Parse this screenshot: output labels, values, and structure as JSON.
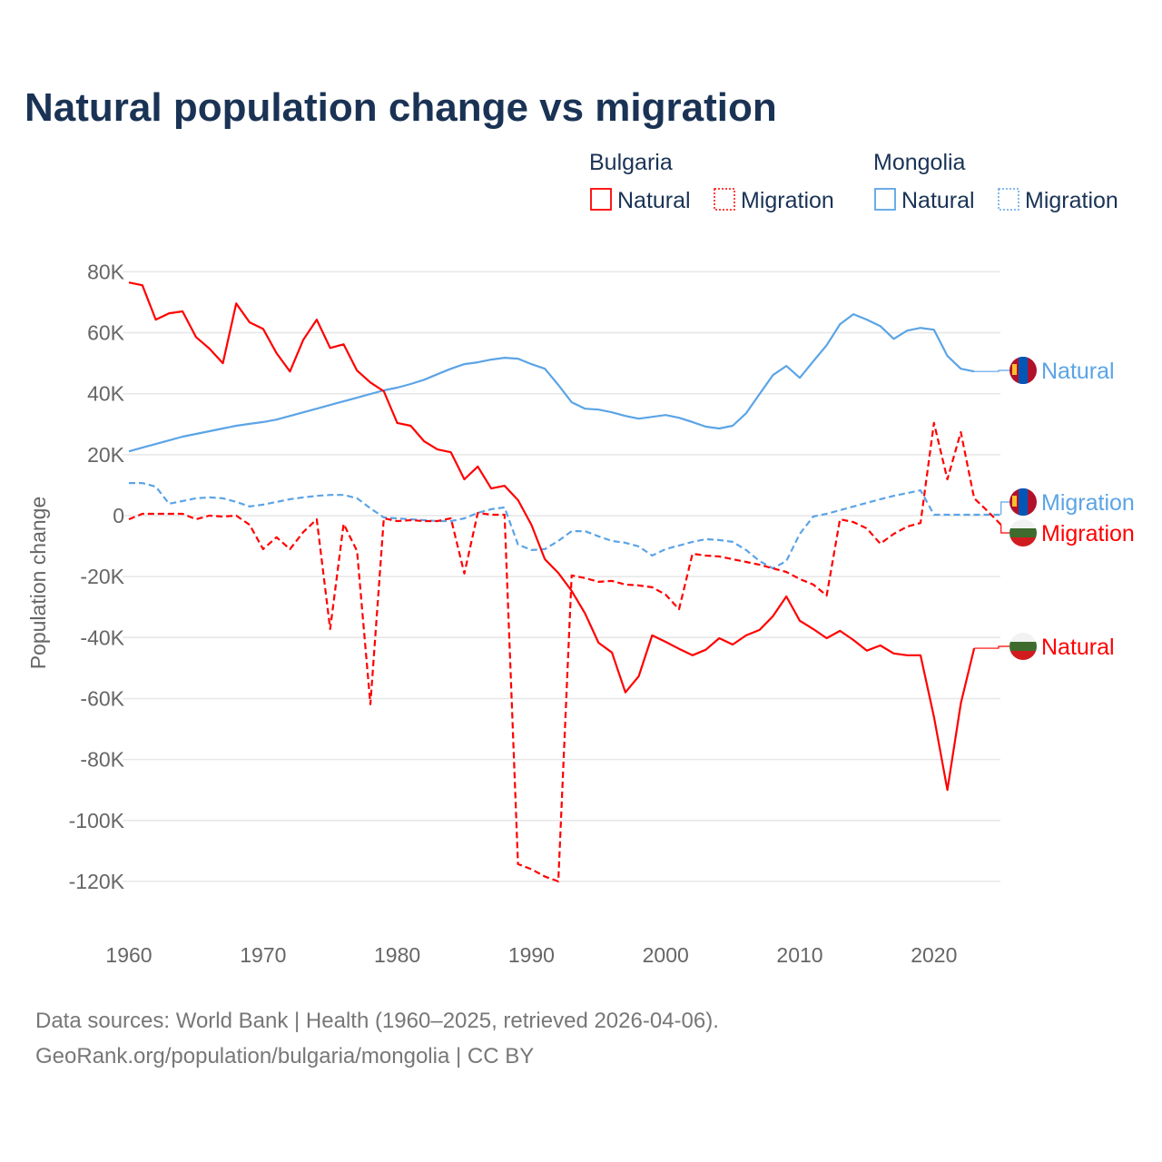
{
  "chart_data": {
    "type": "line",
    "title": "Natural population change vs migration",
    "xlabel": "",
    "ylabel": "Population change",
    "xlim": [
      1960,
      2025
    ],
    "ylim": [
      -130000,
      80000
    ],
    "y_ticks": [
      80000,
      60000,
      40000,
      20000,
      0,
      -20000,
      -40000,
      -60000,
      -80000,
      -100000,
      -120000
    ],
    "y_tick_labels": [
      "80K",
      "60K",
      "40K",
      "20K",
      "0",
      "-20K",
      "-40K",
      "-60K",
      "-80K",
      "-100K",
      "-120K"
    ],
    "x_ticks": [
      1960,
      1970,
      1980,
      1990,
      2000,
      2010,
      2020
    ],
    "x_tick_labels": [
      "1960",
      "1970",
      "1980",
      "1990",
      "2000",
      "2010",
      "2020"
    ],
    "grid": true,
    "legend_placement": "top-right",
    "legend": {
      "groups": [
        {
          "country": "Bulgaria",
          "items": [
            "Natural",
            "Migration"
          ]
        },
        {
          "country": "Mongolia",
          "items": [
            "Natural",
            "Migration"
          ]
        }
      ]
    },
    "series": [
      {
        "name": "Bulgaria Natural",
        "country": "Bulgaria",
        "kind": "Natural",
        "end_label": "Natural",
        "color": "#ff0000",
        "dash": "solid",
        "start_year": 1960,
        "values": [
          76500,
          75600,
          64300,
          66400,
          67000,
          58600,
          54800,
          50000,
          69600,
          63400,
          61300,
          53300,
          47300,
          57700,
          64300,
          55000,
          56200,
          47600,
          43700,
          40800,
          30400,
          29500,
          24400,
          21700,
          20800,
          11900,
          16100,
          8900,
          9800,
          5100,
          -3000,
          -14300,
          -18800,
          -24700,
          -32100,
          -41700,
          -44900,
          -58000,
          -52700,
          -39300,
          -41400,
          -43700,
          -45800,
          -44000,
          -40200,
          -42300,
          -39300,
          -37500,
          -33000,
          -26500,
          -34500,
          -37200,
          -40200,
          -37800,
          -40800,
          -44300,
          -42600,
          -45200,
          -45800,
          -45800,
          -66000,
          -90000,
          -61600,
          -43500
        ]
      },
      {
        "name": "Bulgaria Migration",
        "country": "Bulgaria",
        "kind": "Migration",
        "end_label": "Migration",
        "color": "#ff0000",
        "dash": "dashed",
        "start_year": 1960,
        "values": [
          -1200,
          600,
          600,
          600,
          600,
          -1200,
          0,
          -300,
          0,
          -3000,
          -11000,
          -7100,
          -11000,
          -5400,
          -1200,
          -37200,
          -2700,
          -11600,
          -61900,
          -900,
          -1800,
          -1500,
          -1800,
          -1800,
          -900,
          -19000,
          900,
          300,
          300,
          -114300,
          -116000,
          -118400,
          -120000,
          -19600,
          -20500,
          -21700,
          -21400,
          -22600,
          -22900,
          -23500,
          -25900,
          -30700,
          -12500,
          -13100,
          -13400,
          -14300,
          -15200,
          -16100,
          -17300,
          -18500,
          -20800,
          -22600,
          -26200,
          -1200,
          -2100,
          -4200,
          -9200,
          -6000,
          -3600,
          -2400,
          30400,
          11900,
          27400,
          5700,
          1500,
          -3000
        ]
      },
      {
        "name": "Mongolia Natural",
        "country": "Mongolia",
        "kind": "Natural",
        "end_label": "Natural",
        "color": "#5ba4e6",
        "dash": "solid",
        "start_year": 1960,
        "values": [
          21100,
          22300,
          23500,
          24700,
          25900,
          26800,
          27700,
          28600,
          29500,
          30100,
          30700,
          31500,
          32700,
          33900,
          35100,
          36300,
          37500,
          38700,
          39900,
          41100,
          42000,
          43200,
          44600,
          46400,
          48200,
          49700,
          50300,
          51200,
          51800,
          51500,
          49700,
          48200,
          42900,
          37200,
          35100,
          34800,
          33900,
          32700,
          31800,
          32400,
          33000,
          32100,
          30700,
          29200,
          28600,
          29500,
          33600,
          39900,
          46100,
          49100,
          45200,
          50600,
          55900,
          62800,
          66100,
          64300,
          62200,
          58000,
          60700,
          61600,
          61000,
          52400,
          48200,
          47300
        ]
      },
      {
        "name": "Mongolia Migration",
        "country": "Mongolia",
        "kind": "Migration",
        "end_label": "Migration",
        "color": "#5ba4e6",
        "dash": "dashed",
        "start_year": 1960,
        "values": [
          10700,
          10700,
          9500,
          3900,
          4800,
          5700,
          6000,
          5700,
          4500,
          3000,
          3600,
          4500,
          5400,
          6000,
          6500,
          6800,
          6800,
          5700,
          2400,
          -600,
          -900,
          -1200,
          -1500,
          -1800,
          -1800,
          -900,
          900,
          2100,
          2700,
          -9500,
          -11300,
          -11000,
          -8300,
          -5100,
          -5100,
          -6800,
          -8300,
          -8900,
          -10100,
          -13100,
          -11000,
          -9800,
          -8600,
          -7700,
          -8000,
          -8600,
          -11300,
          -14900,
          -17300,
          -14900,
          -6000,
          -300,
          600,
          1800,
          3000,
          4200,
          5400,
          6500,
          7400,
          8300,
          300,
          300,
          300,
          300,
          300,
          300
        ]
      }
    ],
    "source_lines": [
      "Data sources: World Bank | Health (1960–2025, retrieved 2026-04-06).",
      "GeoRank.org/population/bulgaria/mongolia | CC BY"
    ]
  }
}
